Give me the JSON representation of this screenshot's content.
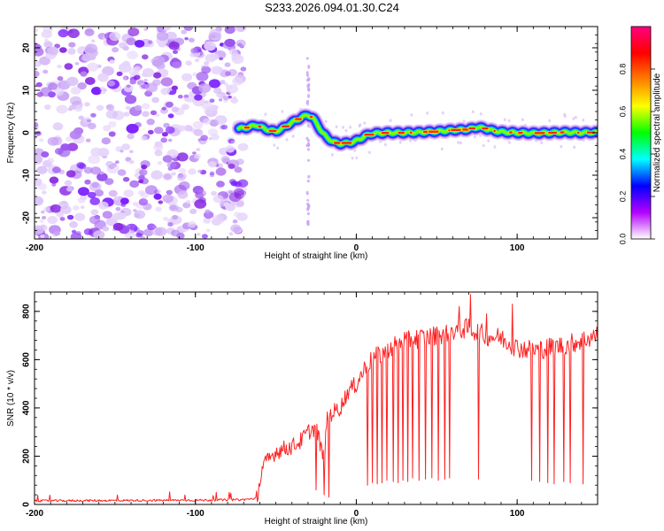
{
  "figure": {
    "title": "S233.2026.094.01.30.C24"
  },
  "chart_data": [
    {
      "type": "heatmap",
      "name": "spectrogram",
      "xlabel": "Height of straight line (km)",
      "ylabel": "Frequency (Hz)",
      "xlim": [
        -200,
        150
      ],
      "ylim": [
        -25,
        25
      ],
      "x_ticks": [
        -200,
        -100,
        0,
        100
      ],
      "x_tick_labels": [
        "-200",
        "-100",
        "0",
        "100"
      ],
      "y_ticks": [
        -20,
        -10,
        0,
        10,
        20
      ],
      "y_tick_labels": [
        "-20",
        "-10",
        "0",
        "10",
        "20"
      ],
      "noise_region_x": [
        -200,
        -73
      ],
      "noise_line_x": -30,
      "ridge_x": [
        -73,
        -68,
        -62,
        -56,
        -50,
        -46,
        -42,
        -38,
        -34,
        -30,
        -27,
        -24,
        -21,
        -18,
        -14,
        -10,
        -6,
        -2,
        2,
        6,
        10,
        15,
        20,
        30,
        40,
        50,
        60,
        70,
        75,
        80,
        85,
        90,
        100,
        110,
        120,
        130,
        140,
        150
      ],
      "ridge_freq": [
        1.0,
        1.2,
        1.8,
        0.8,
        0.3,
        1.0,
        2.0,
        2.8,
        3.6,
        4.2,
        3.5,
        1.8,
        0.0,
        -1.2,
        -2.2,
        -2.6,
        -2.4,
        -2.2,
        -1.5,
        -0.7,
        -0.2,
        -0.1,
        0.0,
        0.0,
        0.1,
        0.3,
        0.6,
        0.8,
        1.3,
        1.0,
        0.5,
        0.2,
        0.0,
        -0.1,
        0.0,
        0.1,
        0.0,
        0.1
      ],
      "colorbar": {
        "label": "Normalized spectral amplitude",
        "range": [
          0.0,
          1.0
        ],
        "ticks": [
          0.0,
          0.2,
          0.4,
          0.6,
          0.8
        ],
        "tick_labels": [
          "0.0",
          "0.2",
          "0.4",
          "0.6",
          "0.8"
        ],
        "colors": [
          "#ffffff",
          "#b400ff",
          "#0000ff",
          "#00ffff",
          "#00ff00",
          "#ffff00",
          "#ff7f00",
          "#ff0000",
          "#ff0080"
        ]
      }
    },
    {
      "type": "line",
      "name": "snr",
      "xlabel": "Height of straight line (km)",
      "ylabel": "SNR (10 * v/v)",
      "xlim": [
        -200,
        150
      ],
      "ylim": [
        0,
        880
      ],
      "x_ticks": [
        -200,
        -100,
        0,
        100
      ],
      "x_tick_labels": [
        "-200",
        "-100",
        "0",
        "100"
      ],
      "y_ticks": [
        0,
        200,
        400,
        600,
        800
      ],
      "y_tick_labels": [
        "0",
        "200",
        "400",
        "600",
        "800"
      ],
      "line_color": "#ff2020",
      "x": [
        -200,
        -90,
        -70,
        -62,
        -58,
        -55,
        -50,
        -45,
        -40,
        -35,
        -30,
        -25,
        -20,
        -18,
        -15,
        -10,
        -5,
        0,
        5,
        10,
        15,
        20,
        25,
        30,
        40,
        50,
        60,
        70,
        80,
        90,
        100,
        110,
        120,
        130,
        140,
        150
      ],
      "y": [
        15,
        18,
        20,
        25,
        160,
        180,
        220,
        230,
        240,
        260,
        300,
        320,
        180,
        360,
        380,
        400,
        470,
        500,
        560,
        600,
        620,
        650,
        660,
        680,
        690,
        700,
        720,
        730,
        700,
        690,
        650,
        640,
        650,
        660,
        680,
        700
      ],
      "dropouts_x": [
        -25,
        -20,
        -17,
        7,
        10,
        13,
        16,
        19,
        23,
        26,
        29,
        32,
        35,
        39,
        43,
        47,
        51,
        55,
        58,
        76,
        109,
        114,
        119,
        123,
        129,
        133,
        141
      ],
      "dropouts_y": [
        60,
        40,
        30,
        80,
        90,
        85,
        90,
        100,
        95,
        90,
        100,
        95,
        110,
        100,
        105,
        110,
        100,
        105,
        110,
        105,
        100,
        95,
        90,
        85,
        95,
        90,
        85
      ],
      "spikes_x": [
        64,
        71,
        81,
        97
      ],
      "spikes_y": [
        820,
        870,
        790,
        830
      ]
    }
  ]
}
